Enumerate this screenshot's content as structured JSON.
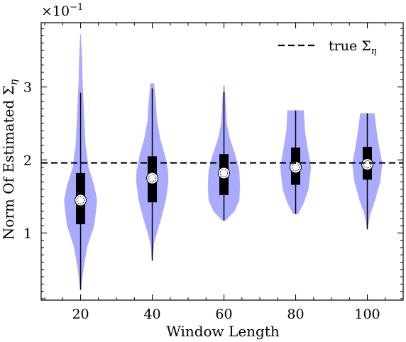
{
  "chart_data": {
    "type": "violin",
    "title": "",
    "xlabel": "Window Length",
    "ylabel": "Norm Of Estimated Σ",
    "ylabel_subscript": "η",
    "y_multiplier_label": "×10",
    "y_multiplier_exponent": "−1",
    "categories": [
      "20",
      "40",
      "60",
      "80",
      "100"
    ],
    "x_values": [
      20,
      40,
      60,
      80,
      100
    ],
    "xlim": [
      9,
      110
    ],
    "ylim": [
      0.08,
      3.88
    ],
    "x_ticks": [
      "20",
      "40",
      "60",
      "80",
      "100"
    ],
    "y_ticks": [
      "1",
      "2",
      "3"
    ],
    "y_tick_values": [
      1,
      2,
      3
    ],
    "grid": false,
    "legend": {
      "position": "top-right",
      "entries": [
        {
          "label": "true Σ",
          "subscript": "η",
          "style": "dashed-black"
        }
      ]
    },
    "reference_line": {
      "y": 1.96,
      "label": "true Σ"
    },
    "violin_color": "#aaaaff",
    "violins": [
      {
        "x": 20,
        "min": 0.22,
        "max": 3.72,
        "q1": 1.12,
        "q3": 1.82,
        "median": 1.45,
        "whisker_low": 0.22,
        "whisker_high": 2.92,
        "profile": [
          [
            0.22,
            0.1
          ],
          [
            0.5,
            0.8
          ],
          [
            0.8,
            1.8
          ],
          [
            1.1,
            3.8
          ],
          [
            1.3,
            4.3
          ],
          [
            1.45,
            4.6
          ],
          [
            1.65,
            3.8
          ],
          [
            1.9,
            2.2
          ],
          [
            2.2,
            1.4
          ],
          [
            2.5,
            1.1
          ],
          [
            2.8,
            0.8
          ],
          [
            3.1,
            0.55
          ],
          [
            3.4,
            0.4
          ],
          [
            3.72,
            0.1
          ]
        ]
      },
      {
        "x": 40,
        "min": 0.62,
        "max": 3.05,
        "q1": 1.42,
        "q3": 2.05,
        "median": 1.75,
        "whisker_low": 0.62,
        "whisker_high": 2.98,
        "profile": [
          [
            0.62,
            0.1
          ],
          [
            0.85,
            0.5
          ],
          [
            1.0,
            1.3
          ],
          [
            1.2,
            2.5
          ],
          [
            1.45,
            3.8
          ],
          [
            1.7,
            4.5
          ],
          [
            1.85,
            4.4
          ],
          [
            2.05,
            3.6
          ],
          [
            2.3,
            2.2
          ],
          [
            2.55,
            1.3
          ],
          [
            2.8,
            1.0
          ],
          [
            3.05,
            0.5
          ]
        ]
      },
      {
        "x": 60,
        "min": 1.17,
        "max": 3.02,
        "q1": 1.52,
        "q3": 2.08,
        "median": 1.82,
        "whisker_low": 1.17,
        "whisker_high": 2.93,
        "profile": [
          [
            1.17,
            0.5
          ],
          [
            1.3,
            3.0
          ],
          [
            1.45,
            4.3
          ],
          [
            1.65,
            4.5
          ],
          [
            1.85,
            4.3
          ],
          [
            2.05,
            3.3
          ],
          [
            2.3,
            1.6
          ],
          [
            2.5,
            0.8
          ],
          [
            2.75,
            0.5
          ],
          [
            3.02,
            0.2
          ]
        ]
      },
      {
        "x": 80,
        "min": 1.26,
        "max": 2.68,
        "q1": 1.66,
        "q3": 2.17,
        "median": 1.9,
        "whisker_low": 1.26,
        "whisker_high": 2.68,
        "profile": [
          [
            1.26,
            0.7
          ],
          [
            1.4,
            2.2
          ],
          [
            1.6,
            3.6
          ],
          [
            1.9,
            4.3
          ],
          [
            2.15,
            3.4
          ],
          [
            2.4,
            2.6
          ],
          [
            2.68,
            2.3
          ]
        ]
      },
      {
        "x": 100,
        "min": 1.05,
        "max": 2.64,
        "q1": 1.73,
        "q3": 2.18,
        "median": 1.94,
        "whisker_low": 1.05,
        "whisker_high": 2.64,
        "profile": [
          [
            1.05,
            0.05
          ],
          [
            1.25,
            0.8
          ],
          [
            1.45,
            2.2
          ],
          [
            1.7,
            3.6
          ],
          [
            1.95,
            4.2
          ],
          [
            2.15,
            3.4
          ],
          [
            2.4,
            2.6
          ],
          [
            2.64,
            2.0
          ]
        ]
      }
    ]
  }
}
